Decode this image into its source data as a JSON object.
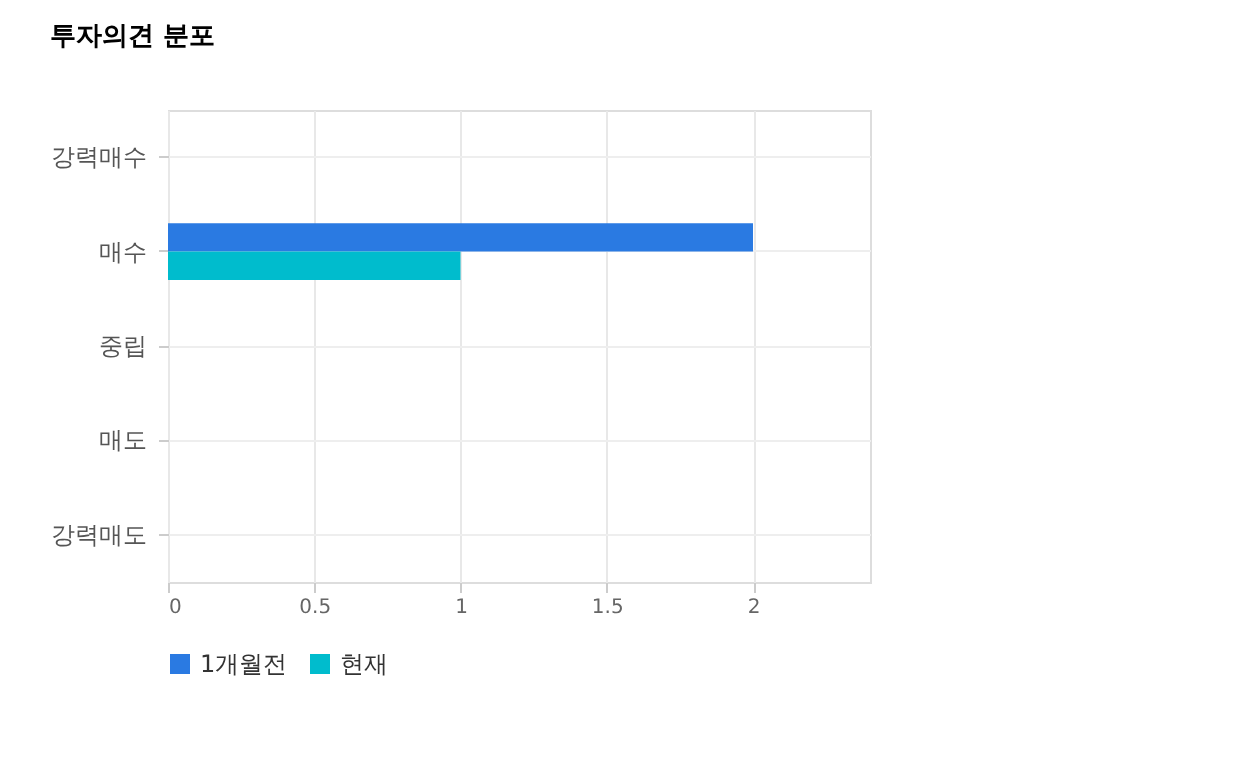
{
  "chart_data": {
    "type": "bar",
    "orientation": "horizontal",
    "title": "투자의견 분포",
    "categories": [
      "강력매수",
      "매수",
      "중립",
      "매도",
      "강력매도"
    ],
    "series": [
      {
        "name": "1개월전",
        "color": "#2a7ae2",
        "values": [
          0,
          2,
          0,
          0,
          0
        ]
      },
      {
        "name": "현재",
        "color": "#00bccd",
        "values": [
          0,
          1,
          0,
          0,
          0
        ]
      }
    ],
    "xlim": [
      0,
      2.4
    ],
    "xticks": [
      0,
      0.5,
      1,
      1.5,
      2
    ],
    "grid": true,
    "legend": "bottom"
  }
}
